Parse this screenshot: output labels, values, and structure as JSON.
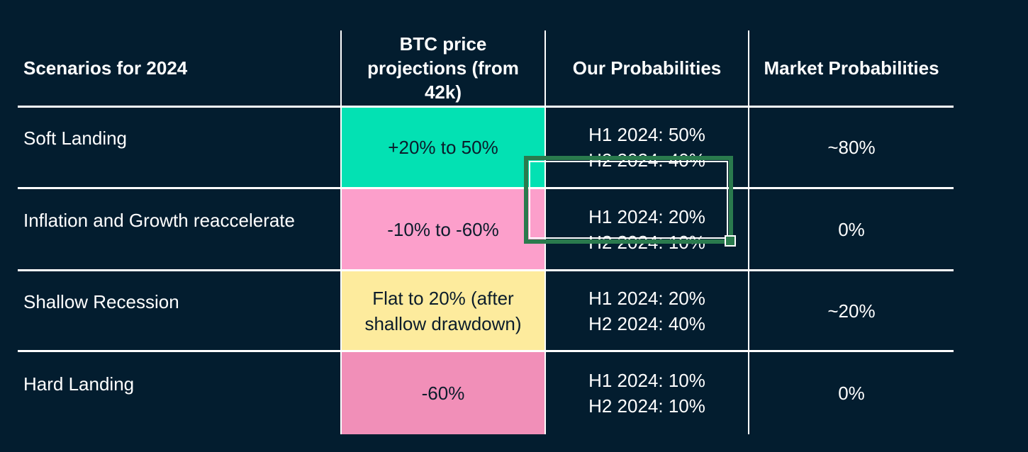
{
  "theme": {
    "background": "#031d2f",
    "grid_line": "#ffffff",
    "text_light": "#ffffff",
    "text_dark": "#0b1c2b",
    "selection_border": "#2a7a4d",
    "cell_green": "#03e1b3",
    "cell_pink_light": "#fc9fcb",
    "cell_yellow": "#fdeb9d",
    "cell_pink_dark": "#f18fb8"
  },
  "table": {
    "headers": [
      "Scenarios for 2024",
      "BTC price projections (from 42k)",
      "Our Probabilities",
      "Market Probabilities"
    ],
    "rows": [
      {
        "scenario": "Soft Landing",
        "projection": "+20% to 50%",
        "projection_bg": "#03e1b3",
        "our_h1": "H1 2024: 50%",
        "our_h2": "H2 2024: 40%",
        "market": "~80%"
      },
      {
        "scenario": "Inflation and Growth reaccelerate",
        "projection": "-10% to -60%",
        "projection_bg": "#fc9fcb",
        "our_h1": "H1 2024: 20%",
        "our_h2": "H2 2024: 10%",
        "market": "0%"
      },
      {
        "scenario": "Shallow Recession",
        "projection": "Flat to 20% (after shallow drawdown)",
        "projection_bg": "#fdeb9d",
        "our_h1": "H1 2024: 20%",
        "our_h2": "H2 2024: 40%",
        "market": "~20%"
      },
      {
        "scenario": "Hard Landing",
        "projection": "-60%",
        "projection_bg": "#f18fb8",
        "our_h1": "H1 2024: 10%",
        "our_h2": "H2 2024: 10%",
        "market": "0%"
      }
    ],
    "selection": {
      "selected_row_scenario": "Inflation and Growth reaccelerate",
      "selected_column": "Our Probabilities"
    }
  }
}
